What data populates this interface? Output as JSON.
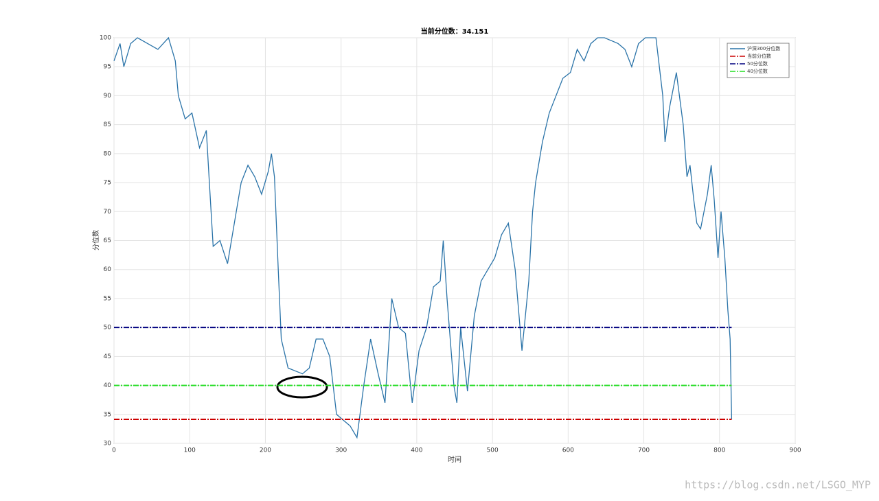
{
  "chart_data": {
    "type": "line",
    "title": "当前分位数：34.151",
    "xlabel": "时间",
    "ylabel": "分位数",
    "xlim": [
      0,
      900
    ],
    "ylim": [
      30,
      100
    ],
    "xticks": [
      0,
      100,
      200,
      300,
      400,
      500,
      600,
      700,
      800,
      900
    ],
    "yticks": [
      30,
      35,
      40,
      45,
      50,
      55,
      60,
      65,
      70,
      75,
      80,
      85,
      90,
      95,
      100
    ],
    "grid": true,
    "legend": "upper right",
    "watermark": "https://blog.csdn.net/LSGO_MYP",
    "series": [
      {
        "name": "沪深300分位数",
        "color": "#2a73a8",
        "style": "solid",
        "x": [
          0,
          8,
          13,
          22,
          31,
          58,
          72,
          81,
          85,
          94,
          103,
          113,
          122,
          126,
          131,
          140,
          150,
          159,
          168,
          177,
          186,
          195,
          204,
          208,
          212,
          217,
          221,
          230,
          249,
          258,
          267,
          276,
          285,
          294,
          303,
          312,
          321,
          330,
          339,
          349,
          358,
          367,
          376,
          385,
          394,
          403,
          413,
          422,
          431,
          435,
          440,
          449,
          453,
          458,
          467,
          476,
          485,
          494,
          503,
          512,
          521,
          530,
          539,
          548,
          553,
          557,
          566,
          575,
          584,
          593,
          603,
          612,
          621,
          630,
          639,
          648,
          666,
          675,
          684,
          693,
          702,
          711,
          716,
          725,
          728,
          734,
          743,
          752,
          757,
          761,
          766,
          770,
          775,
          784,
          789,
          793,
          798,
          802,
          807,
          811,
          814,
          816
        ],
        "values": [
          96,
          99,
          95,
          99,
          100,
          98,
          100,
          96,
          90,
          86,
          87,
          81,
          84,
          75,
          64,
          65,
          61,
          68,
          75,
          78,
          76,
          73,
          77,
          80,
          76,
          60,
          48,
          43,
          42,
          43,
          48,
          48,
          45,
          35,
          34,
          33,
          31,
          40,
          48,
          42,
          37,
          55,
          50,
          49,
          37,
          46,
          50,
          57,
          58,
          65,
          55,
          40,
          37,
          50,
          39,
          52,
          58,
          60,
          62,
          66,
          68,
          60,
          46,
          58,
          70,
          75,
          82,
          87,
          90,
          93,
          94,
          98,
          96,
          99,
          100,
          100,
          99,
          98,
          95,
          99,
          100,
          100,
          100,
          90,
          82,
          88,
          94,
          85,
          76,
          78,
          72,
          68,
          67,
          73,
          78,
          72,
          62,
          70,
          62,
          53,
          48,
          34.151
        ]
      },
      {
        "name": "当前分位数",
        "color": "#cc0000",
        "style": "dashdot",
        "x": [
          0,
          816
        ],
        "values": [
          34.151,
          34.151
        ]
      },
      {
        "name": "50分位数",
        "color": "#000080",
        "style": "dashdot",
        "x": [
          0,
          816
        ],
        "values": [
          50,
          50
        ]
      },
      {
        "name": "40分位数",
        "color": "#22dd22",
        "style": "dashdot",
        "x": [
          0,
          816
        ],
        "values": [
          40,
          40
        ]
      }
    ]
  }
}
